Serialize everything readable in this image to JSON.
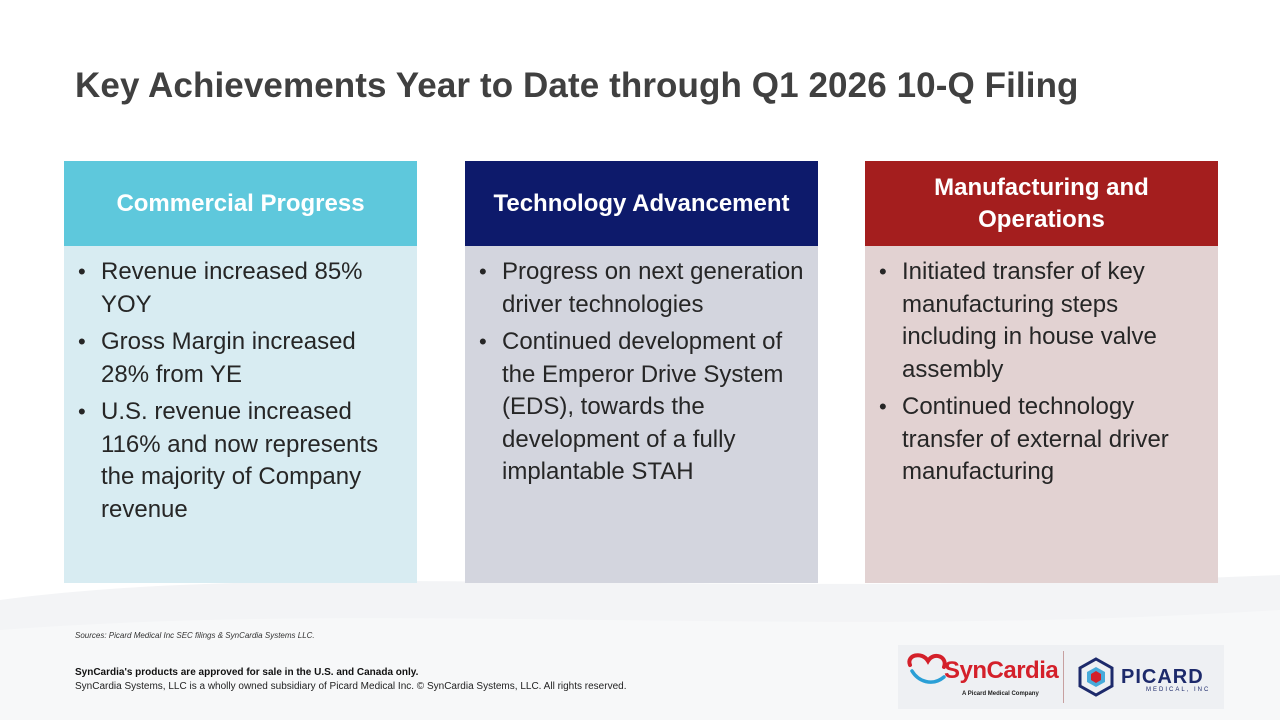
{
  "slide": {
    "title": "Key Achievements Year to Date through Q1 2026 10-Q Filing"
  },
  "columns": {
    "commercial": {
      "header": "Commercial Progress",
      "bullets": [
        "Revenue increased 85% YOY",
        "Gross Margin increased 28% from YE",
        "U.S. revenue increased 116% and now represents the majority of Company revenue"
      ],
      "header_color": "#5ec8dc",
      "body_color": "#d8ecf2"
    },
    "technology": {
      "header": "Technology Advancement",
      "bullets": [
        "Progress on next generation driver technologies",
        "Continued development of the Emperor Drive System (EDS), towards the development of a fully implantable STAH"
      ],
      "header_color": "#0d1a6b",
      "body_color": "#d3d5de"
    },
    "manufacturing": {
      "header": "Manufacturing and Operations",
      "bullets": [
        "Initiated transfer of key manufacturing steps including in house valve assembly",
        "Continued technology transfer of external driver manufacturing"
      ],
      "header_color": "#a41e1e",
      "body_color": "#e2d2d2"
    }
  },
  "footer": {
    "sources": "Sources: Picard Medical Inc SEC filings & SynCardia Systems LLC.",
    "approval_notice": "SynCardia's products are approved for sale in the U.S. and Canada only.",
    "copyright": "SynCardia Systems, LLC is a wholly owned subsidiary of Picard Medical Inc. © SynCardia Systems, LLC. All rights reserved."
  },
  "logos": {
    "syncardia": {
      "name": "SynCardia",
      "tagline": "A Picard Medical Company",
      "icon": "heart-swoosh-icon",
      "color": "#d4202a"
    },
    "picard": {
      "name": "PICARD",
      "subtitle": "MEDICAL, INC",
      "icon": "picard-geometric-icon",
      "color": "#1d2a6b"
    }
  }
}
